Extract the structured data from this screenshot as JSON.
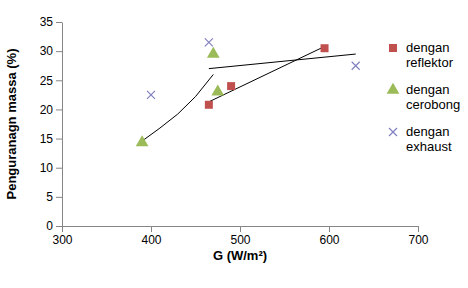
{
  "chart_data": {
    "type": "scatter",
    "x_label": "G (W/m²)",
    "y_label": "Penguranagn massa (%)",
    "xlim": [
      300,
      700
    ],
    "xticks": [
      300,
      400,
      500,
      600,
      700
    ],
    "ylim": [
      0,
      35
    ],
    "yticks": [
      0,
      5,
      10,
      15,
      20,
      25,
      30,
      35
    ],
    "grid": false,
    "legend": "right",
    "series": [
      {
        "name": "dengan reflektor",
        "color": "#c0504d",
        "marker": "square",
        "x": [
          465,
          490,
          595
        ],
        "values": [
          20.8,
          24,
          30.5
        ],
        "trend_x": [
          465,
          595
        ],
        "trend_values": [
          21.3,
          30.8
        ]
      },
      {
        "name": "dengan cerobong",
        "color": "#9bbb59",
        "marker": "triangle",
        "x": [
          390,
          470,
          475
        ],
        "values": [
          14.3,
          29.5,
          23
        ],
        "trend_x": [
          392,
          410,
          430,
          450,
          470
        ],
        "trend_values": [
          14.8,
          16.8,
          19.2,
          22.2,
          26
        ]
      },
      {
        "name": "dengan exhaust",
        "color": "#8080c0",
        "marker": "x",
        "x": [
          400,
          465,
          630
        ],
        "values": [
          22.5,
          31.5,
          27.5
        ],
        "trend_x": [
          465,
          630
        ],
        "trend_values": [
          27,
          29.5
        ]
      }
    ]
  }
}
